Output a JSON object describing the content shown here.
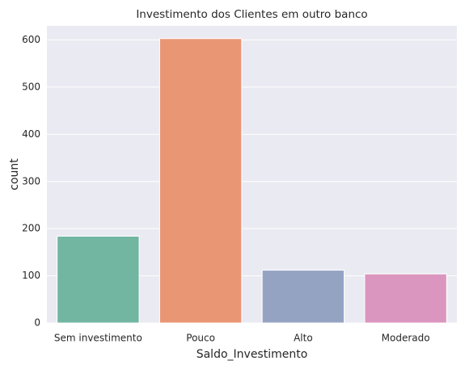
{
  "chart_data": {
    "type": "bar",
    "title": "Investimento dos Clientes em outro banco",
    "xlabel": "Saldo_Investimento",
    "ylabel": "count",
    "categories": [
      "Sem investimento",
      "Pouco",
      "Alto",
      "Moderado"
    ],
    "values": [
      184,
      603,
      112,
      104
    ],
    "colors": [
      "#72b6a1",
      "#e99675",
      "#95a3c3",
      "#db96c0"
    ],
    "ylim": [
      0,
      630
    ],
    "yticks": [
      0,
      100,
      200,
      300,
      400,
      500,
      600
    ],
    "grid": true
  }
}
